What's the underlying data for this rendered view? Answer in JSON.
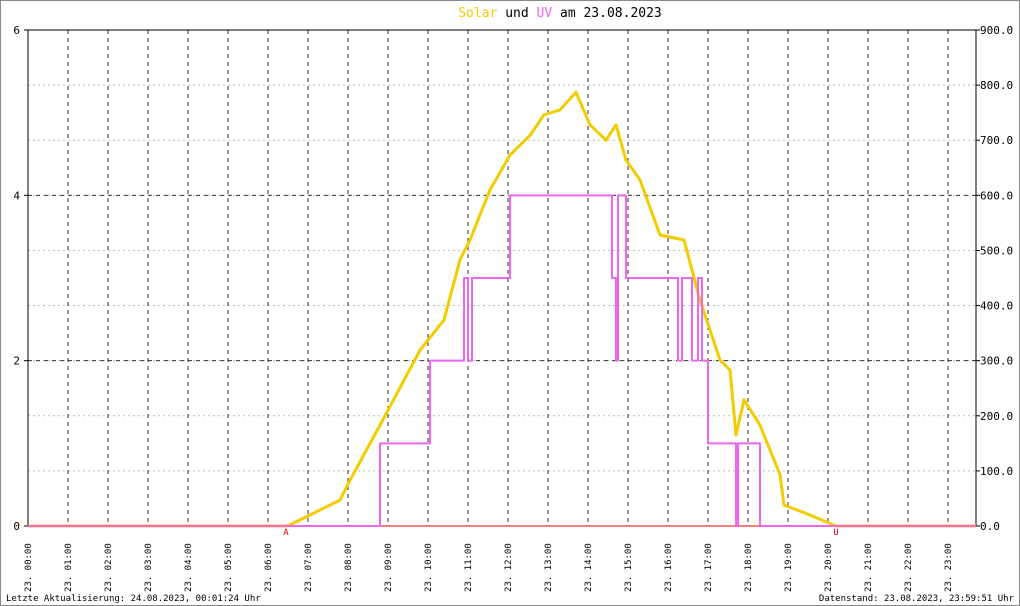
{
  "chart_data": {
    "type": "line",
    "title_connector": "und",
    "title_suffix": "am 23.08.2023",
    "xlim": [
      0,
      23.7
    ],
    "xticks": [
      {
        "value": 0,
        "label": "23. 00:00"
      },
      {
        "value": 1,
        "label": "23. 01:00"
      },
      {
        "value": 2,
        "label": "23. 02:00"
      },
      {
        "value": 3,
        "label": "23. 03:00"
      },
      {
        "value": 4,
        "label": "23. 04:00"
      },
      {
        "value": 5,
        "label": "23. 05:00"
      },
      {
        "value": 6,
        "label": "23. 06:00"
      },
      {
        "value": 7,
        "label": "23. 07:00"
      },
      {
        "value": 8,
        "label": "23. 08:00"
      },
      {
        "value": 9,
        "label": "23. 09:00"
      },
      {
        "value": 10,
        "label": "23. 10:00"
      },
      {
        "value": 11,
        "label": "23. 11:00"
      },
      {
        "value": 12,
        "label": "23. 12:00"
      },
      {
        "value": 13,
        "label": "23. 13:00"
      },
      {
        "value": 14,
        "label": "23. 14:00"
      },
      {
        "value": 15,
        "label": "23. 15:00"
      },
      {
        "value": 16,
        "label": "23. 16:00"
      },
      {
        "value": 17,
        "label": "23. 17:00"
      },
      {
        "value": 18,
        "label": "23. 18:00"
      },
      {
        "value": 19,
        "label": "23. 19:00"
      },
      {
        "value": 20,
        "label": "23. 20:00"
      },
      {
        "value": 21,
        "label": "23. 21:00"
      },
      {
        "value": 22,
        "label": "23. 22:00"
      },
      {
        "value": 23,
        "label": "23. 23:00"
      }
    ],
    "ylim": [
      0,
      6
    ],
    "yticks": [
      0,
      2,
      4,
      6
    ],
    "y2lim": [
      0,
      900
    ],
    "y2ticks": [
      {
        "value": 0,
        "label": "0.0"
      },
      {
        "value": 100,
        "label": "100.0"
      },
      {
        "value": 200,
        "label": "200.0"
      },
      {
        "value": 300,
        "label": "300.0"
      },
      {
        "value": 400,
        "label": "400.0"
      },
      {
        "value": 500,
        "label": "500.0"
      },
      {
        "value": 600,
        "label": "600.0"
      },
      {
        "value": 700,
        "label": "700.0"
      },
      {
        "value": 800,
        "label": "800.0"
      },
      {
        "value": 900,
        "label": "900.0"
      }
    ],
    "grid": true,
    "series": [
      {
        "name": "Solar",
        "color": "#f2cc00",
        "axis": "y2",
        "step": false,
        "x": [
          0,
          6.45,
          6.55,
          7.8,
          8.05,
          8.8,
          9.8,
          10.4,
          10.8,
          11.05,
          11.55,
          12.05,
          12.55,
          12.9,
          13.3,
          13.7,
          14.05,
          14.45,
          14.7,
          14.95,
          15.3,
          15.8,
          16.4,
          16.8,
          17.3,
          17.55,
          17.7,
          17.9,
          18.3,
          18.8,
          18.9,
          19.55,
          20.2,
          23.7
        ],
        "values": [
          0,
          0,
          2,
          47,
          83,
          183,
          319,
          374,
          483,
          519,
          610,
          673,
          709,
          746,
          755,
          787,
          728,
          700,
          728,
          664,
          628,
          528,
          519,
          410,
          301,
          283,
          165,
          229,
          183,
          93,
          38,
          20,
          0,
          0
        ]
      },
      {
        "name": "UV",
        "color": "#ee66ee",
        "axis": "y",
        "step": true,
        "x": [
          0,
          8.8,
          10.05,
          10.9,
          11.0,
          11.1,
          12.05,
          14.6,
          14.7,
          14.75,
          14.95,
          16.25,
          16.35,
          16.6,
          16.75,
          16.85,
          17.0,
          17.7,
          17.75,
          18.3,
          23.7
        ],
        "values": [
          0,
          1,
          2,
          3,
          2,
          3,
          4,
          3,
          2,
          4,
          3,
          2,
          3,
          2,
          3,
          2,
          1,
          0,
          1,
          0,
          0
        ]
      }
    ],
    "annotations": [
      {
        "x": 6.45,
        "text": "A"
      },
      {
        "x": 20.2,
        "text": "U"
      }
    ],
    "footer_left": "Letzte Aktualisierung: 24.08.2023, 00:01:24 Uhr",
    "footer_right": "Datenstand: 23.08.2023, 23:59:51 Uhr"
  }
}
